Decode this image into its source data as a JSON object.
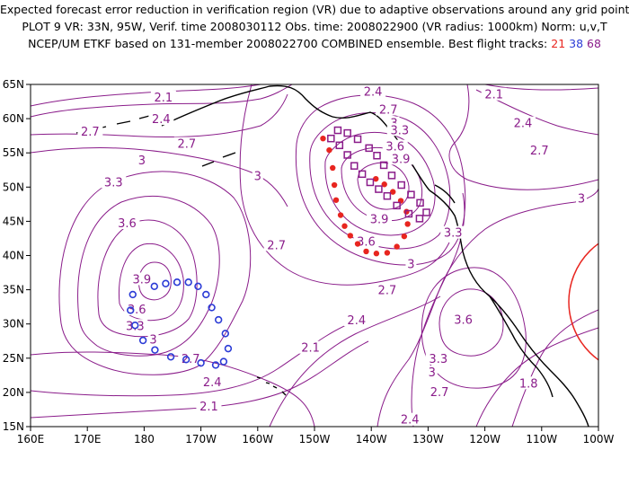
{
  "title": {
    "line1": "Expected forecast error reduction in verification region (VR) due to adaptive observations around any grid point.",
    "line2": "PLOT 9 VR: 33N, 95W, Verif. time 2008030112 Obs. time: 2008022900 (VR radius: 1000km) Norm: u,v,T",
    "line3_prefix": "NCEP/UM ETKF based on 131-member 2008022700 COMBINED ensemble.  Best flight tracks:",
    "track_red": "21",
    "track_blue": "38",
    "track_purple": "68"
  },
  "colors": {
    "contour": "#8a1c8a",
    "coast": "#000000",
    "track_red": "#e8251f",
    "track_blue": "#2b3bd6",
    "track_purple": "#8a1c8a",
    "verification_circle": "#e8251f"
  },
  "map": {
    "lon_ticks": [
      "160E",
      "170E",
      "180",
      "170W",
      "160W",
      "150W",
      "140W",
      "130W",
      "120W",
      "110W",
      "100W"
    ],
    "lat_ticks": [
      "15N",
      "20N",
      "25N",
      "30N",
      "35N",
      "40N",
      "45N",
      "50N",
      "55N",
      "60N",
      "65N"
    ]
  },
  "contour_labels": [
    {
      "text": "2.1",
      "lon": -176.6,
      "lat": 62.8
    },
    {
      "text": "2.4",
      "lon": -177.0,
      "lat": 59.6
    },
    {
      "text": "2.7",
      "lon": -189.5,
      "lat": 57.8
    },
    {
      "text": "2.7",
      "lon": -172.5,
      "lat": 56.0
    },
    {
      "text": "3",
      "lon": -180.4,
      "lat": 53.6
    },
    {
      "text": "3",
      "lon": -160.0,
      "lat": 51.3
    },
    {
      "text": "3.3",
      "lon": -185.4,
      "lat": 50.4
    },
    {
      "text": "3.6",
      "lon": -183.0,
      "lat": 44.4
    },
    {
      "text": "3.9",
      "lon": -180.4,
      "lat": 36.2
    },
    {
      "text": "3.6",
      "lon": -181.3,
      "lat": 31.8
    },
    {
      "text": "3.3",
      "lon": -181.6,
      "lat": 29.4
    },
    {
      "text": "3",
      "lon": -178.4,
      "lat": 27.4
    },
    {
      "text": "2.7",
      "lon": -171.8,
      "lat": 24.6
    },
    {
      "text": "2.4",
      "lon": -168.0,
      "lat": 21.2
    },
    {
      "text": "2.1",
      "lon": -168.6,
      "lat": 17.6
    },
    {
      "text": "2.7",
      "lon": -156.7,
      "lat": 41.2
    },
    {
      "text": "2.7",
      "lon": -137.2,
      "lat": 34.6
    },
    {
      "text": "2.4",
      "lon": -142.6,
      "lat": 30.2
    },
    {
      "text": "2.1",
      "lon": -150.7,
      "lat": 26.2
    },
    {
      "text": "2.4",
      "lon": -139.7,
      "lat": 63.6
    },
    {
      "text": "2.7",
      "lon": -137.0,
      "lat": 61.0
    },
    {
      "text": "3",
      "lon": -136.0,
      "lat": 59.0
    },
    {
      "text": "3.3",
      "lon": -135.0,
      "lat": 58.0
    },
    {
      "text": "3.6",
      "lon": -135.8,
      "lat": 55.6
    },
    {
      "text": "3.9",
      "lon": -134.8,
      "lat": 53.8
    },
    {
      "text": "3.9",
      "lon": -138.6,
      "lat": 45.0
    },
    {
      "text": "3.6",
      "lon": -140.9,
      "lat": 41.7
    },
    {
      "text": "3",
      "lon": -133.0,
      "lat": 38.4
    },
    {
      "text": "3.3",
      "lon": -125.6,
      "lat": 43.0
    },
    {
      "text": "3.6",
      "lon": -123.8,
      "lat": 30.3
    },
    {
      "text": "3.3",
      "lon": -128.2,
      "lat": 24.6
    },
    {
      "text": "3",
      "lon": -129.3,
      "lat": 22.6
    },
    {
      "text": "2.7",
      "lon": -128.0,
      "lat": 19.7
    },
    {
      "text": "2.4",
      "lon": -133.2,
      "lat": 15.7
    },
    {
      "text": "2.1",
      "lon": -118.4,
      "lat": 63.2
    },
    {
      "text": "2.4",
      "lon": -113.3,
      "lat": 59.0
    },
    {
      "text": "2.7",
      "lon": -110.4,
      "lat": 55.0
    },
    {
      "text": "3",
      "lon": -103.0,
      "lat": 48.0
    },
    {
      "text": "1.8",
      "lon": -112.3,
      "lat": 21.0
    }
  ]
}
